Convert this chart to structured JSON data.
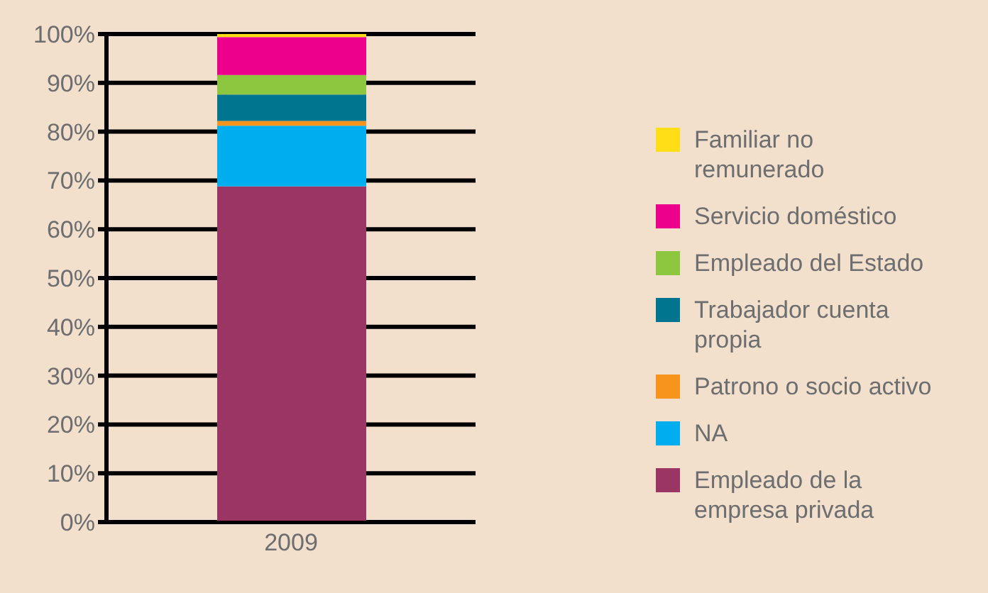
{
  "chart_data": {
    "type": "bar",
    "stacked": true,
    "categories": [
      "2009"
    ],
    "series": [
      {
        "name": "Empleado de la empresa privada",
        "color": "#9b3564",
        "values": [
          68.8
        ]
      },
      {
        "name": "NA",
        "color": "#00aeef",
        "values": [
          12.4
        ]
      },
      {
        "name": "Patrono o socio activo",
        "color": "#f7941d",
        "values": [
          1.0
        ]
      },
      {
        "name": "Trabajador cuenta propia",
        "color": "#00758f",
        "values": [
          5.4
        ]
      },
      {
        "name": "Empleado del Estado",
        "color": "#8dc63f",
        "values": [
          4.0
        ]
      },
      {
        "name": "Servicio doméstico",
        "color": "#ec008c",
        "values": [
          7.8
        ]
      },
      {
        "name": "Familiar no remunerado",
        "color": "#ffde17",
        "values": [
          0.6
        ]
      }
    ],
    "ylim": [
      0,
      100
    ],
    "yticks": [
      {
        "value": 0,
        "label": "0%"
      },
      {
        "value": 10,
        "label": "10%"
      },
      {
        "value": 20,
        "label": "20%"
      },
      {
        "value": 30,
        "label": "30%"
      },
      {
        "value": 40,
        "label": "40%"
      },
      {
        "value": 50,
        "label": "50%"
      },
      {
        "value": 60,
        "label": "60%"
      },
      {
        "value": 70,
        "label": "70%"
      },
      {
        "value": 80,
        "label": "80%"
      },
      {
        "value": 90,
        "label": "90%"
      },
      {
        "value": 100,
        "label": "100%"
      }
    ],
    "grid": "y",
    "legend": "right"
  }
}
